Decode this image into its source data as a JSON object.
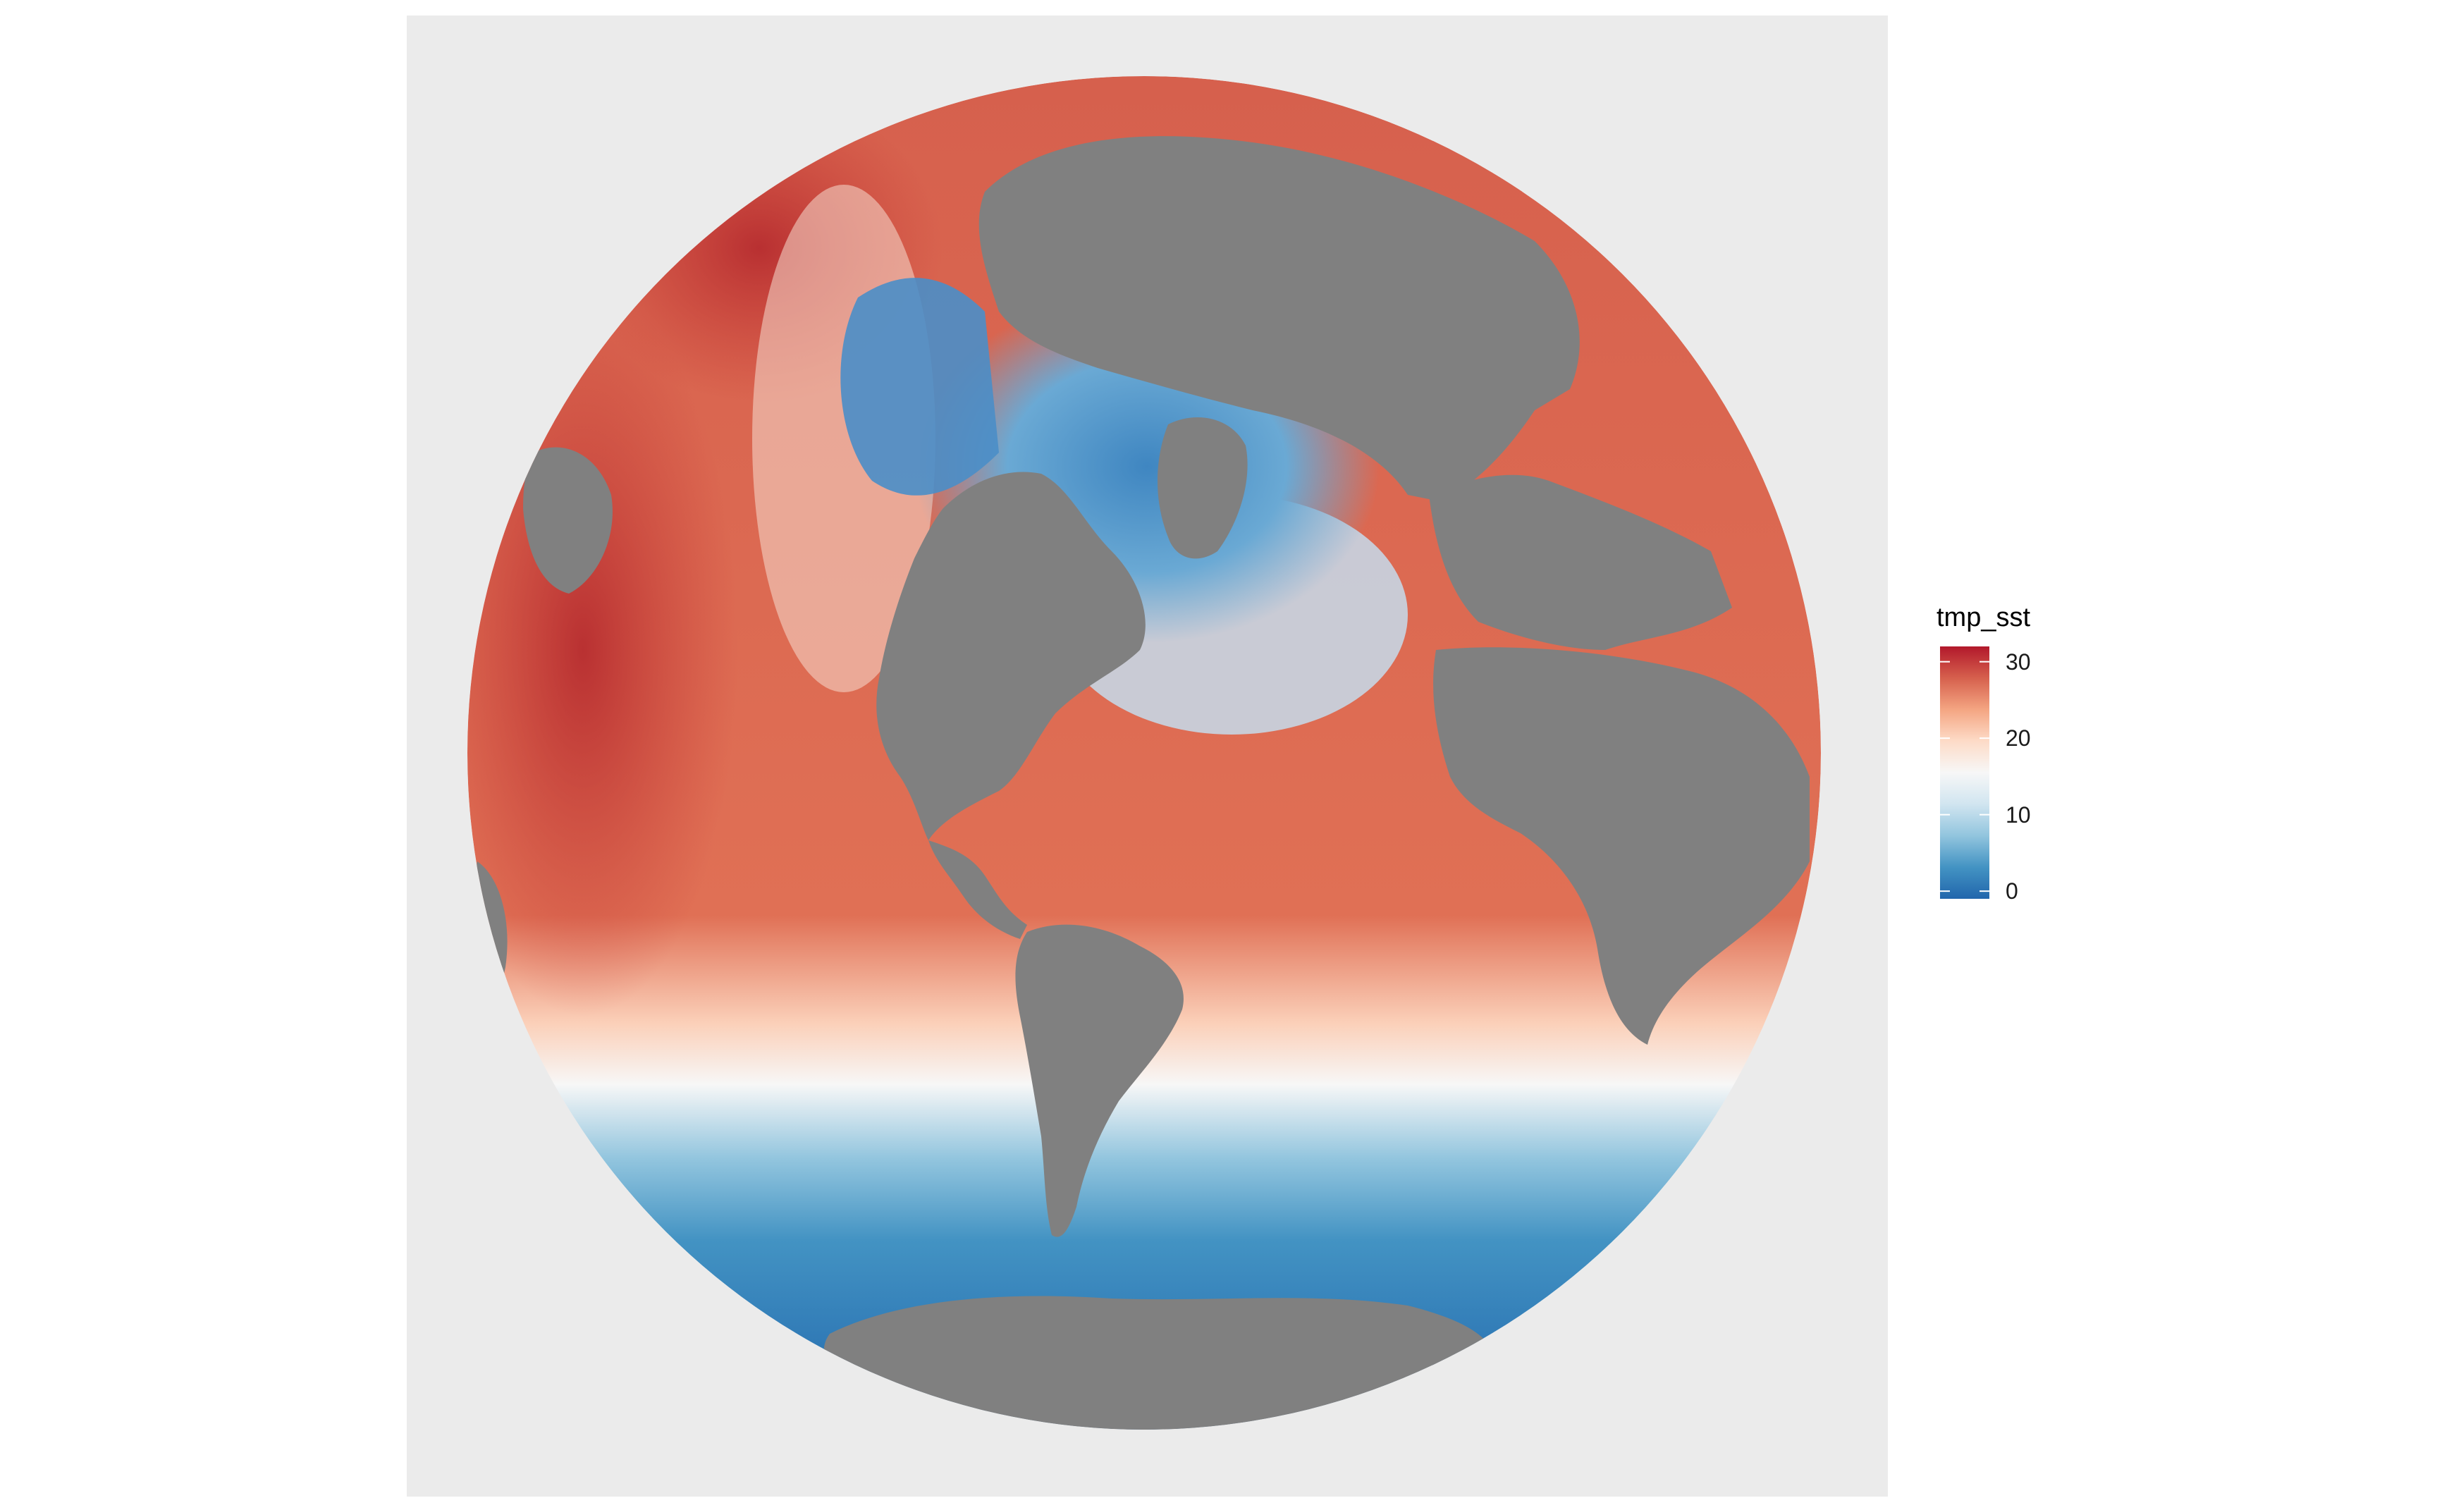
{
  "map": {
    "projection": "orthographic",
    "background_color": "#ebebeb",
    "land_color": "#808080",
    "visible_regions": [
      "North America",
      "South America",
      "Greenland",
      "Europe",
      "Africa",
      "Antarctica"
    ]
  },
  "legend": {
    "title": "tmp_sst",
    "min": -1,
    "max": 32,
    "palette": [
      "#2166ac",
      "#4393c3",
      "#92c5de",
      "#d1e5f0",
      "#f7f7f7",
      "#fddbc7",
      "#f4a582",
      "#d6604d",
      "#b2182b"
    ],
    "ticks": [
      {
        "value": 0,
        "label": "0"
      },
      {
        "value": 10,
        "label": "10"
      },
      {
        "value": 20,
        "label": "20"
      },
      {
        "value": 30,
        "label": "30"
      }
    ]
  }
}
